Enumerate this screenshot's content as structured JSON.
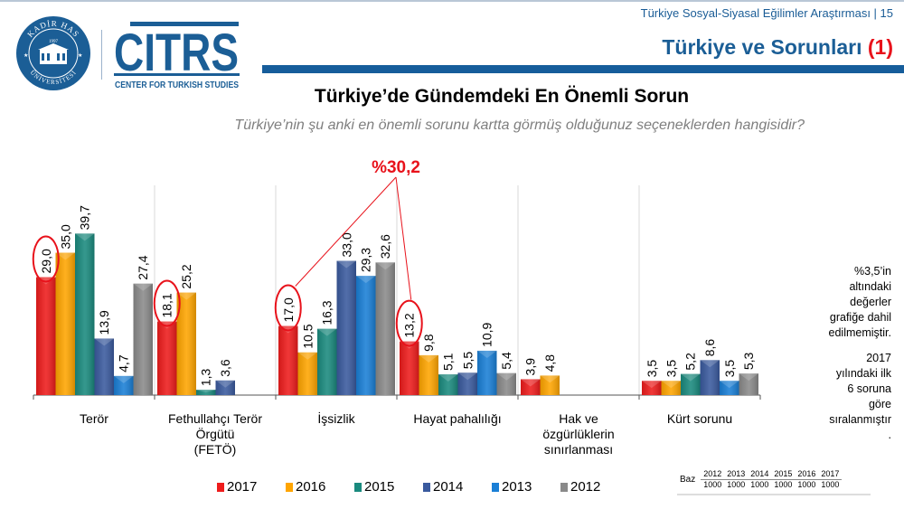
{
  "header": {
    "subtitle": "Türkiye Sosyal-Siyasal Eğilimler Araştırması | 15",
    "title_text": "Türkiye ve Sorunları ",
    "title_number": "(1)"
  },
  "logos": {
    "khas": {
      "top_text": "KADİR HAS",
      "bottom_text": "ÜNİVERSİTESİ",
      "year": "1997"
    },
    "citrs": {
      "name": "CITRS",
      "subtitle": "CENTER FOR TURKISH STUDIES"
    }
  },
  "colors": {
    "brand_blue": "#165d9b",
    "highlight_red": "#e8121b",
    "2017": "#ee1c1c",
    "2016": "#ffa500",
    "2015": "#1a8a7e",
    "2014": "#3a5a9e",
    "2013": "#1a7fd6",
    "2012": "#8a8a8a"
  },
  "chart_data": {
    "type": "bar",
    "title": "Türkiye’de Gündemdeki En Önemli Sorun",
    "subtitle": "Türkiye’nin şu anki en önemli sorunu kartta görmüş olduğunuz  seçeneklerden hangisidir?",
    "xlabel": "",
    "ylabel": "",
    "ylim": [
      0,
      45
    ],
    "grid": false,
    "legend_position": "bottom",
    "categories": [
      "Terör",
      "Fethullahçı Terör Örgütü (FETÖ)",
      "İşsizlik",
      "Hayat pahalılığı",
      "Hak ve özgürlüklerin sınırlanması",
      "Kürt sorunu"
    ],
    "category_lines": [
      [
        "Terör"
      ],
      [
        "Fethullahçı Terör",
        "Örgütü",
        "(FETÖ)"
      ],
      [
        "İşsizlik"
      ],
      [
        "Hayat pahalılığı"
      ],
      [
        "Hak ve",
        "özgürlüklerin",
        "sınırlanması"
      ],
      [
        "Kürt sorunu"
      ]
    ],
    "series": [
      {
        "name": "2017",
        "values": [
          29.0,
          18.1,
          17.0,
          13.2,
          3.9,
          3.5
        ],
        "labels": [
          "29,0",
          "18,1",
          "17,0",
          "13,2",
          "3,9",
          "3,5"
        ]
      },
      {
        "name": "2016",
        "values": [
          35.0,
          25.2,
          10.5,
          9.8,
          4.8,
          3.5
        ],
        "labels": [
          "35,0",
          "25,2",
          "10,5",
          "9,8",
          "4,8",
          "3,5"
        ]
      },
      {
        "name": "2015",
        "values": [
          39.7,
          1.3,
          16.3,
          5.1,
          null,
          5.2
        ],
        "labels": [
          "39,7",
          "1,3",
          "16,3",
          "5,1",
          "",
          "5,2"
        ]
      },
      {
        "name": "2014",
        "values": [
          13.9,
          3.6,
          33.0,
          5.5,
          null,
          8.6
        ],
        "labels": [
          "13,9",
          "3,6",
          "33,0",
          "5,5",
          "",
          "8,6"
        ]
      },
      {
        "name": "2013",
        "values": [
          4.7,
          null,
          29.3,
          10.9,
          null,
          3.5
        ],
        "labels": [
          "4,7",
          "",
          "29,3",
          "10,9",
          "",
          "3,5"
        ]
      },
      {
        "name": "2012",
        "values": [
          27.4,
          null,
          32.6,
          5.4,
          null,
          5.3
        ],
        "labels": [
          "27,4",
          "",
          "32,6",
          "5,4",
          "",
          "5,3"
        ]
      }
    ],
    "annotations": [
      {
        "text": "%30,2",
        "note": "İşsizlik 2017 (17,0) + Hayat pahalılığı 2017 (13,2)"
      },
      {
        "circled": [
          "Terör 2017: 29,0",
          "FETÖ 2017: 18,1",
          "İşsizlik 2017: 17,0",
          "Hayat pahalılığı 2017: 13,2"
        ]
      }
    ]
  },
  "annotation_total": "%30,2",
  "notes": {
    "note1_lines": [
      "%3,5’in",
      "altındaki",
      "değerler",
      "grafiğe dahil",
      "edilmemiştir."
    ],
    "note2_lines": [
      "2017",
      "yılındaki ilk",
      "6 soruna",
      "göre",
      "sıralanmıştır",
      "."
    ]
  },
  "base_table": {
    "label": "Baz",
    "years": [
      "2012",
      "2013",
      "2014",
      "2015",
      "2016",
      "2017"
    ],
    "values": [
      "1000",
      "1000",
      "1000",
      "1000",
      "1000",
      "1000"
    ]
  }
}
